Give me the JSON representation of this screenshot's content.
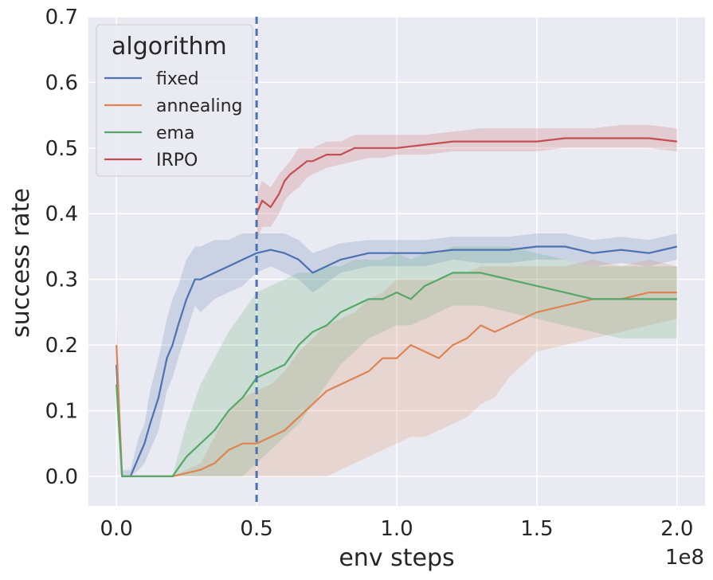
{
  "chart_data": {
    "type": "line",
    "xlabel": "env steps",
    "ylabel": "success rate",
    "x_offset_label": "1e8",
    "xlim": [
      -0.1,
      2.1
    ],
    "ylim": [
      -0.045,
      0.7
    ],
    "x_ticks": [
      0.0,
      0.5,
      1.0,
      1.5,
      2.0
    ],
    "x_tick_labels": [
      "0.0",
      "0.5",
      "1.0",
      "1.5",
      "2.0"
    ],
    "y_ticks": [
      0.0,
      0.1,
      0.2,
      0.3,
      0.4,
      0.5,
      0.6,
      0.7
    ],
    "y_tick_labels": [
      "0.0",
      "0.1",
      "0.2",
      "0.3",
      "0.4",
      "0.5",
      "0.6",
      "0.7"
    ],
    "grid": true,
    "background": "#eaeaf2",
    "legend": {
      "title": "algorithm",
      "placement": "top-left"
    },
    "vline": {
      "x": 0.5,
      "style": "dashed",
      "color": "#4c72b0"
    },
    "series": [
      {
        "name": "fixed",
        "color": "#4c72b0",
        "x": [
          0.0,
          0.02,
          0.05,
          0.08,
          0.1,
          0.12,
          0.15,
          0.18,
          0.2,
          0.22,
          0.25,
          0.28,
          0.3,
          0.35,
          0.4,
          0.45,
          0.5,
          0.55,
          0.6,
          0.65,
          0.7,
          0.8,
          0.9,
          1.0,
          1.1,
          1.2,
          1.3,
          1.4,
          1.5,
          1.6,
          1.7,
          1.8,
          1.9,
          2.0
        ],
        "y": [
          0.17,
          0.0,
          0.0,
          0.03,
          0.05,
          0.08,
          0.12,
          0.18,
          0.2,
          0.23,
          0.27,
          0.3,
          0.3,
          0.31,
          0.32,
          0.33,
          0.34,
          0.345,
          0.34,
          0.33,
          0.31,
          0.33,
          0.34,
          0.34,
          0.34,
          0.345,
          0.345,
          0.345,
          0.35,
          0.35,
          0.34,
          0.345,
          0.34,
          0.35
        ],
        "low": [
          0.12,
          0.0,
          0.0,
          0.01,
          0.02,
          0.04,
          0.07,
          0.13,
          0.15,
          0.18,
          0.22,
          0.26,
          0.25,
          0.27,
          0.28,
          0.29,
          0.31,
          0.32,
          0.31,
          0.3,
          0.28,
          0.31,
          0.32,
          0.32,
          0.32,
          0.33,
          0.325,
          0.325,
          0.33,
          0.33,
          0.32,
          0.325,
          0.32,
          0.33
        ],
        "high": [
          0.21,
          0.01,
          0.01,
          0.06,
          0.08,
          0.13,
          0.18,
          0.24,
          0.27,
          0.29,
          0.33,
          0.35,
          0.35,
          0.36,
          0.36,
          0.37,
          0.37,
          0.37,
          0.37,
          0.36,
          0.34,
          0.355,
          0.36,
          0.36,
          0.36,
          0.365,
          0.365,
          0.365,
          0.37,
          0.37,
          0.36,
          0.365,
          0.36,
          0.37
        ]
      },
      {
        "name": "annealing",
        "color": "#dd8452",
        "x": [
          0.0,
          0.02,
          0.1,
          0.2,
          0.3,
          0.35,
          0.4,
          0.45,
          0.5,
          0.55,
          0.6,
          0.65,
          0.7,
          0.75,
          0.8,
          0.85,
          0.9,
          0.95,
          1.0,
          1.05,
          1.1,
          1.15,
          1.2,
          1.25,
          1.3,
          1.35,
          1.4,
          1.45,
          1.5,
          1.6,
          1.7,
          1.8,
          1.9,
          2.0
        ],
        "y": [
          0.2,
          0.0,
          0.0,
          0.0,
          0.01,
          0.02,
          0.04,
          0.05,
          0.05,
          0.06,
          0.07,
          0.09,
          0.11,
          0.13,
          0.14,
          0.15,
          0.16,
          0.18,
          0.18,
          0.2,
          0.19,
          0.18,
          0.2,
          0.21,
          0.23,
          0.22,
          0.23,
          0.24,
          0.25,
          0.26,
          0.27,
          0.27,
          0.28,
          0.28
        ],
        "low": [
          0.15,
          0.0,
          0.0,
          0.0,
          0.0,
          0.0,
          0.0,
          0.0,
          0.0,
          0.0,
          0.0,
          0.0,
          0.0,
          0.0,
          0.01,
          0.02,
          0.03,
          0.04,
          0.05,
          0.06,
          0.06,
          0.07,
          0.08,
          0.09,
          0.11,
          0.12,
          0.15,
          0.17,
          0.19,
          0.2,
          0.21,
          0.22,
          0.23,
          0.24
        ],
        "high": [
          0.25,
          0.0,
          0.0,
          0.0,
          0.02,
          0.06,
          0.1,
          0.12,
          0.13,
          0.14,
          0.16,
          0.19,
          0.21,
          0.23,
          0.24,
          0.25,
          0.27,
          0.28,
          0.3,
          0.3,
          0.3,
          0.3,
          0.31,
          0.31,
          0.32,
          0.32,
          0.32,
          0.32,
          0.32,
          0.32,
          0.33,
          0.32,
          0.33,
          0.32
        ]
      },
      {
        "name": "ema",
        "color": "#55a868",
        "x": [
          0.0,
          0.02,
          0.1,
          0.2,
          0.25,
          0.3,
          0.35,
          0.4,
          0.45,
          0.5,
          0.55,
          0.6,
          0.65,
          0.7,
          0.75,
          0.8,
          0.85,
          0.9,
          0.95,
          1.0,
          1.05,
          1.1,
          1.15,
          1.2,
          1.25,
          1.3,
          1.4,
          1.5,
          1.6,
          1.7,
          1.8,
          1.9,
          2.0
        ],
        "y": [
          0.14,
          0.0,
          0.0,
          0.0,
          0.03,
          0.05,
          0.07,
          0.1,
          0.12,
          0.15,
          0.16,
          0.17,
          0.2,
          0.22,
          0.23,
          0.25,
          0.26,
          0.27,
          0.27,
          0.28,
          0.27,
          0.29,
          0.3,
          0.31,
          0.31,
          0.31,
          0.3,
          0.29,
          0.28,
          0.27,
          0.27,
          0.27,
          0.27
        ],
        "low": [
          0.1,
          0.0,
          0.0,
          0.0,
          0.0,
          0.0,
          0.0,
          0.0,
          0.0,
          0.02,
          0.04,
          0.06,
          0.08,
          0.11,
          0.14,
          0.17,
          0.19,
          0.21,
          0.22,
          0.23,
          0.23,
          0.24,
          0.25,
          0.26,
          0.26,
          0.26,
          0.25,
          0.24,
          0.23,
          0.22,
          0.21,
          0.21,
          0.21
        ],
        "high": [
          0.18,
          0.0,
          0.0,
          0.0,
          0.08,
          0.14,
          0.18,
          0.22,
          0.25,
          0.28,
          0.29,
          0.3,
          0.31,
          0.31,
          0.32,
          0.32,
          0.33,
          0.33,
          0.33,
          0.34,
          0.33,
          0.34,
          0.34,
          0.35,
          0.35,
          0.35,
          0.35,
          0.34,
          0.33,
          0.32,
          0.32,
          0.32,
          0.32
        ]
      },
      {
        "name": "IRPO",
        "color": "#c44e52",
        "x": [
          0.5,
          0.52,
          0.55,
          0.58,
          0.6,
          0.62,
          0.65,
          0.68,
          0.7,
          0.75,
          0.8,
          0.85,
          0.9,
          0.95,
          1.0,
          1.1,
          1.2,
          1.3,
          1.4,
          1.5,
          1.6,
          1.7,
          1.8,
          1.9,
          2.0
        ],
        "y": [
          0.4,
          0.42,
          0.41,
          0.43,
          0.45,
          0.46,
          0.47,
          0.48,
          0.48,
          0.49,
          0.49,
          0.5,
          0.5,
          0.5,
          0.5,
          0.505,
          0.51,
          0.51,
          0.51,
          0.51,
          0.515,
          0.515,
          0.515,
          0.515,
          0.51
        ],
        "low": [
          0.36,
          0.38,
          0.38,
          0.4,
          0.42,
          0.43,
          0.44,
          0.455,
          0.46,
          0.47,
          0.475,
          0.48,
          0.485,
          0.485,
          0.49,
          0.49,
          0.495,
          0.495,
          0.495,
          0.495,
          0.5,
          0.5,
          0.5,
          0.5,
          0.495
        ],
        "high": [
          0.43,
          0.45,
          0.44,
          0.46,
          0.47,
          0.48,
          0.5,
          0.5,
          0.5,
          0.51,
          0.51,
          0.52,
          0.52,
          0.52,
          0.52,
          0.52,
          0.525,
          0.53,
          0.53,
          0.53,
          0.53,
          0.53,
          0.535,
          0.535,
          0.53
        ]
      }
    ]
  }
}
